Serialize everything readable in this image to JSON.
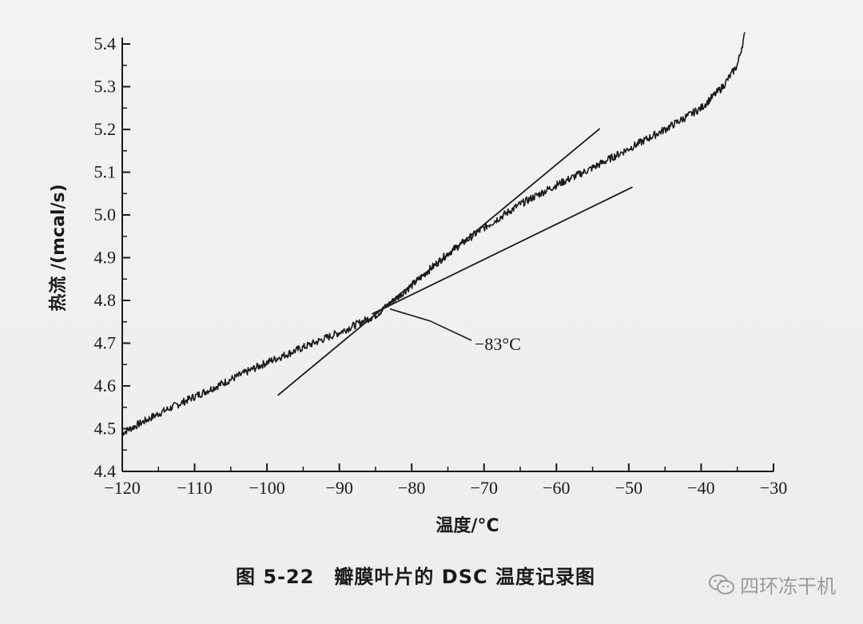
{
  "chart_data": {
    "type": "line",
    "title": "",
    "xlabel": "温度/°C",
    "ylabel": "热流 /(mcal/s)",
    "xlim": [
      -120,
      -30
    ],
    "ylim": [
      4.4,
      5.4
    ],
    "x_ticks": [
      "−120",
      "−110",
      "−100",
      "−90",
      "−80",
      "−70",
      "−60",
      "−50",
      "−40",
      "−30"
    ],
    "y_ticks": [
      "4.4",
      "4.5",
      "4.6",
      "4.7",
      "4.8",
      "4.9",
      "5.0",
      "5.1",
      "5.2",
      "5.3",
      "5.4"
    ],
    "series": [
      {
        "x": [
          -120,
          -115,
          -110,
          -105,
          -100,
          -95,
          -90,
          -85,
          -80,
          -75,
          -70,
          -65,
          -60,
          -55,
          -50,
          -45,
          -40,
          -37,
          -35,
          -34
        ],
        "values": [
          4.49,
          4.535,
          4.575,
          4.615,
          4.655,
          4.69,
          4.725,
          4.765,
          4.835,
          4.91,
          4.97,
          5.025,
          5.07,
          5.11,
          5.155,
          5.2,
          5.25,
          5.3,
          5.35,
          5.42
        ]
      }
    ],
    "tangent_lines": [
      {
        "x": [
          -98.5,
          -54
        ],
        "values": [
          4.578,
          5.202
        ]
      },
      {
        "x": [
          -85.5,
          -49.5
        ],
        "values": [
          4.768,
          5.065
        ]
      }
    ],
    "annotation": {
      "text": "−83°C",
      "x": -83,
      "y": 4.78
    },
    "legend": "none",
    "grid": false
  },
  "caption": "图 5-22　瓣膜叶片的 DSC 温度记录图",
  "watermark": "四环冻干机",
  "colors": {
    "line": "#1a1a1a",
    "watermark": "#9a9a9a"
  }
}
